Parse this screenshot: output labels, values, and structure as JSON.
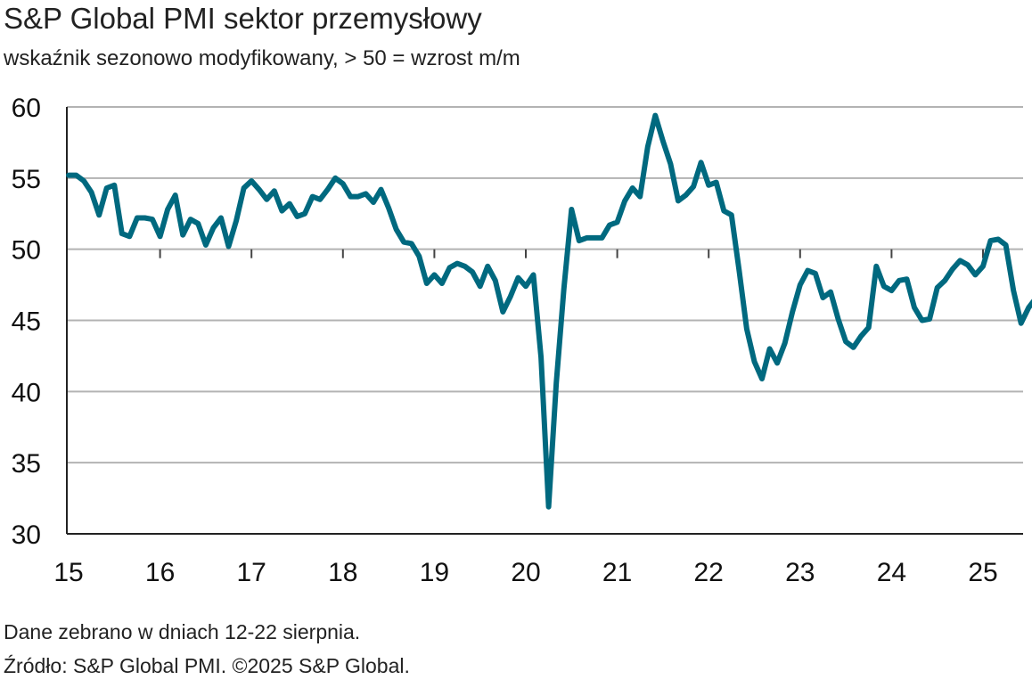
{
  "chart_data": {
    "type": "line",
    "title": "S&P Global PMI sektor przemysłowy",
    "subtitle": "wskaźnik sezonowo modyfikowany, > 50 = wzrost m/m",
    "ylim": [
      30,
      60
    ],
    "yticks": [
      30,
      35,
      40,
      45,
      50,
      55,
      60
    ],
    "xlim": [
      2015.0,
      2025.6
    ],
    "xticks": [
      {
        "value": 2015,
        "label": "15"
      },
      {
        "value": 2016,
        "label": "16"
      },
      {
        "value": 2017,
        "label": "17"
      },
      {
        "value": 2018,
        "label": "18"
      },
      {
        "value": 2019,
        "label": "19"
      },
      {
        "value": 2020,
        "label": "20"
      },
      {
        "value": 2021,
        "label": "21"
      },
      {
        "value": 2022,
        "label": "22"
      },
      {
        "value": 2023,
        "label": "23"
      },
      {
        "value": 2024,
        "label": "24"
      },
      {
        "value": 2025,
        "label": "25"
      }
    ],
    "grid": true,
    "series_color": "#00697f",
    "series": [
      {
        "x_start": 2015.0,
        "x_step": 0.0833333,
        "values": [
          55.2,
          55.2,
          54.8,
          54.0,
          52.4,
          54.3,
          54.5,
          51.1,
          50.9,
          52.2,
          52.2,
          52.1,
          50.9,
          52.8,
          53.8,
          51.0,
          52.1,
          51.8,
          50.3,
          51.5,
          52.2,
          50.2,
          52.0,
          54.3,
          54.8,
          54.2,
          53.5,
          54.1,
          52.7,
          53.2,
          52.3,
          52.5,
          53.7,
          53.5,
          54.2,
          55.0,
          54.6,
          53.7,
          53.7,
          53.9,
          53.3,
          54.2,
          52.9,
          51.4,
          50.5,
          50.4,
          49.5,
          47.6,
          48.2,
          47.6,
          48.7,
          49.0,
          48.8,
          48.4,
          47.4,
          48.8,
          47.8,
          45.6,
          46.7,
          48.0,
          47.4,
          48.2,
          42.4,
          31.9,
          40.6,
          47.2,
          52.8,
          50.6,
          50.8,
          50.8,
          50.8,
          51.7,
          51.9,
          53.4,
          54.3,
          53.7,
          57.2,
          59.4,
          57.6,
          56.0,
          53.4,
          53.8,
          54.4,
          56.1,
          54.5,
          54.7,
          52.7,
          52.4,
          48.5,
          44.4,
          42.1,
          40.9,
          43.0,
          42.0,
          43.4,
          45.6,
          47.5,
          48.5,
          48.3,
          46.6,
          47.0,
          45.1,
          43.5,
          43.1,
          43.9,
          44.5,
          48.8,
          47.4,
          47.1,
          47.8,
          47.9,
          45.9,
          45.0,
          45.1,
          47.3,
          47.8,
          48.6,
          49.2,
          48.9,
          48.2,
          48.8,
          50.6,
          50.7,
          50.3,
          47.1,
          44.8,
          45.9,
          46.6
        ]
      }
    ]
  },
  "footer": {
    "note": "Dane zebrano w dniach 12-22 sierpnia.",
    "source": "Źródło: S&P Global PMI. ©2025 S&P Global."
  }
}
